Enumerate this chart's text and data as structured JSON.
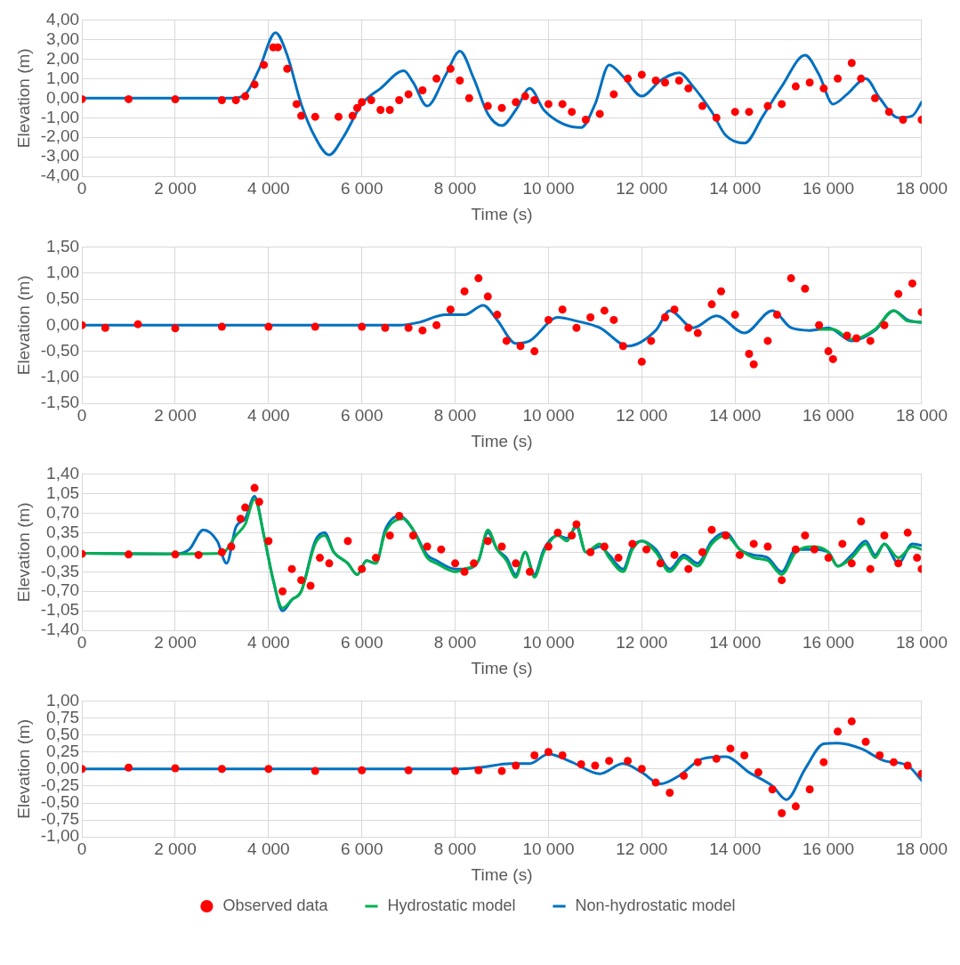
{
  "chart_data": [
    {
      "type": "line",
      "xlabel": "Time (s)",
      "ylabel": "Elevation (m)",
      "grid": true,
      "legend": false,
      "xlim": [
        0,
        18000
      ],
      "xticks": [
        {
          "value": 0,
          "label": "0"
        },
        {
          "value": 2000,
          "label": "2 000"
        },
        {
          "value": 4000,
          "label": "4 000"
        },
        {
          "value": 6000,
          "label": "6 000"
        },
        {
          "value": 8000,
          "label": "8 000"
        },
        {
          "value": 10000,
          "label": "10 000"
        },
        {
          "value": 12000,
          "label": "12 000"
        },
        {
          "value": 14000,
          "label": "14 000"
        },
        {
          "value": 16000,
          "label": "16 000"
        },
        {
          "value": 18000,
          "label": "18 000"
        }
      ],
      "ylim": [
        -4,
        4
      ],
      "yticks": [
        {
          "value": -4,
          "label": "-4,00"
        },
        {
          "value": -3,
          "label": "-3,00"
        },
        {
          "value": -2,
          "label": "-2,00"
        },
        {
          "value": -1,
          "label": "-1,00"
        },
        {
          "value": 0,
          "label": "0,00"
        },
        {
          "value": 1,
          "label": "1,00"
        },
        {
          "value": 2,
          "label": "2,00"
        },
        {
          "value": 3,
          "label": "3,00"
        },
        {
          "value": 4,
          "label": "4,00"
        }
      ],
      "series": [
        {
          "type": "scatter",
          "marker": "circle",
          "color": "#ff0000",
          "x": [
            0,
            1000,
            2000,
            3000,
            3300,
            3500,
            3700,
            3900,
            4100,
            4200,
            4400,
            4600,
            4700,
            5000,
            5500,
            5800,
            5900,
            6000,
            6200,
            6400,
            6600,
            6800,
            7000,
            7300,
            7600,
            7900,
            8100,
            8300,
            8700,
            9000,
            9300,
            9500,
            9700,
            10000,
            10300,
            10500,
            10800,
            11100,
            11400,
            11700,
            12000,
            12300,
            12500,
            12800,
            13000,
            13300,
            13600,
            14000,
            14300,
            14700,
            15000,
            15300,
            15600,
            15900,
            16200,
            16500,
            16700,
            17000,
            17300,
            17600,
            18000
          ],
          "values": [
            -0.05,
            -0.05,
            -0.06,
            -0.1,
            -0.1,
            0.1,
            0.7,
            1.7,
            2.6,
            2.6,
            1.5,
            -0.3,
            -0.9,
            -0.95,
            -0.95,
            -0.9,
            -0.5,
            -0.2,
            -0.1,
            -0.6,
            -0.6,
            -0.1,
            0.2,
            0.4,
            1.0,
            1.5,
            0.9,
            0.0,
            -0.4,
            -0.5,
            -0.2,
            0.1,
            -0.1,
            -0.3,
            -0.3,
            -0.7,
            -1.1,
            -0.8,
            0.2,
            1.0,
            1.2,
            0.9,
            0.8,
            0.9,
            0.5,
            -0.4,
            -1.0,
            -0.7,
            -0.7,
            -0.4,
            -0.3,
            0.6,
            0.8,
            0.5,
            1.0,
            1.8,
            1.0,
            0.0,
            -0.7,
            -1.1,
            -1.1
          ]
        },
        {
          "type": "line",
          "marker": "none",
          "color": "#0070c0",
          "x": [
            0,
            3200,
            3500,
            3800,
            4150,
            4400,
            4700,
            5000,
            5300,
            5600,
            6000,
            6400,
            6900,
            7100,
            7400,
            7800,
            8100,
            8400,
            8700,
            9000,
            9300,
            9600,
            9900,
            10300,
            10700,
            11000,
            11300,
            11600,
            12000,
            12400,
            12800,
            13100,
            13500,
            13800,
            14200,
            14600,
            15000,
            15500,
            15800,
            16100,
            16400,
            16800,
            17100,
            17500,
            17800,
            18000
          ],
          "values": [
            0,
            0,
            0.2,
            1.5,
            3.35,
            2.2,
            -0.3,
            -2.0,
            -2.9,
            -2.0,
            -0.3,
            0.5,
            1.4,
            0.8,
            -0.4,
            1.2,
            2.4,
            1.0,
            -0.8,
            -1.4,
            -0.6,
            0.5,
            -0.6,
            -1.3,
            -1.5,
            -0.3,
            1.7,
            1.1,
            0.1,
            0.9,
            1.3,
            0.6,
            -0.7,
            -1.9,
            -2.3,
            -0.9,
            0.6,
            2.2,
            1.2,
            -0.3,
            0.2,
            1.0,
            0.0,
            -1.0,
            -0.9,
            -0.2
          ]
        }
      ]
    },
    {
      "type": "line",
      "xlabel": "Time (s)",
      "ylabel": "Elevation (m)",
      "grid": true,
      "legend": false,
      "xlim": [
        0,
        18000
      ],
      "xticks": [
        {
          "value": 0,
          "label": "0"
        },
        {
          "value": 2000,
          "label": "2 000"
        },
        {
          "value": 4000,
          "label": "4 000"
        },
        {
          "value": 6000,
          "label": "6 000"
        },
        {
          "value": 8000,
          "label": "8 000"
        },
        {
          "value": 10000,
          "label": "10 000"
        },
        {
          "value": 12000,
          "label": "12 000"
        },
        {
          "value": 14000,
          "label": "14 000"
        },
        {
          "value": 16000,
          "label": "16 000"
        },
        {
          "value": 18000,
          "label": "18 000"
        }
      ],
      "ylim": [
        -1.5,
        1.5
      ],
      "yticks": [
        {
          "value": -1.5,
          "label": "-1,50"
        },
        {
          "value": -1,
          "label": "-1,00"
        },
        {
          "value": -0.5,
          "label": "-0,50"
        },
        {
          "value": 0,
          "label": "0,00"
        },
        {
          "value": 0.5,
          "label": "0,50"
        },
        {
          "value": 1,
          "label": "1,00"
        },
        {
          "value": 1.5,
          "label": "1,50"
        }
      ],
      "series": [
        {
          "type": "scatter",
          "marker": "circle",
          "color": "#ff0000",
          "x": [
            0,
            500,
            1200,
            2000,
            3000,
            4000,
            5000,
            6000,
            6500,
            7000,
            7300,
            7600,
            7900,
            8200,
            8500,
            8700,
            8900,
            9100,
            9400,
            9700,
            10000,
            10300,
            10600,
            10900,
            11200,
            11400,
            11600,
            12000,
            12200,
            12500,
            12700,
            13000,
            13200,
            13500,
            13700,
            14000,
            14300,
            14400,
            14700,
            14900,
            15200,
            15500,
            15800,
            16000,
            16100,
            16400,
            16600,
            16900,
            17200,
            17500,
            17800,
            18000
          ],
          "values": [
            0.0,
            -0.05,
            0.02,
            -0.06,
            -0.03,
            -0.03,
            -0.03,
            -0.03,
            -0.05,
            -0.05,
            -0.1,
            0.0,
            0.3,
            0.65,
            0.9,
            0.55,
            0.2,
            -0.3,
            -0.4,
            -0.5,
            0.1,
            0.3,
            -0.05,
            0.15,
            0.28,
            0.1,
            -0.4,
            -0.7,
            -0.3,
            0.15,
            0.3,
            -0.05,
            -0.15,
            0.4,
            0.65,
            0.2,
            -0.55,
            -0.75,
            -0.3,
            0.2,
            0.9,
            0.7,
            0.0,
            -0.5,
            -0.65,
            -0.2,
            -0.25,
            -0.3,
            0.0,
            0.6,
            0.8,
            0.25
          ]
        },
        {
          "type": "line",
          "marker": "none",
          "color": "#00b050",
          "x": [
            15800,
            16100,
            16500,
            17000,
            17400,
            17700,
            18000
          ],
          "values": [
            -0.08,
            -0.08,
            -0.27,
            -0.08,
            0.28,
            0.08,
            0.06
          ]
        },
        {
          "type": "line",
          "marker": "none",
          "color": "#0070c0",
          "x": [
            0,
            6800,
            7200,
            7800,
            8200,
            8600,
            8900,
            9300,
            9600,
            10200,
            10600,
            11100,
            11700,
            12300,
            12600,
            13100,
            13600,
            14200,
            14800,
            15200,
            15600,
            16000,
            16500,
            17000,
            17400,
            17700,
            18000
          ],
          "values": [
            0,
            0,
            0.05,
            0.2,
            0.2,
            0.38,
            0.1,
            -0.35,
            -0.3,
            0.15,
            0.08,
            -0.05,
            -0.4,
            -0.1,
            0.28,
            -0.05,
            0.18,
            -0.15,
            0.28,
            -0.05,
            -0.1,
            -0.05,
            -0.3,
            -0.1,
            0.28,
            0.1,
            0.05
          ]
        }
      ]
    },
    {
      "type": "line",
      "xlabel": "Time (s)",
      "ylabel": "Elevation (m)",
      "grid": true,
      "legend": false,
      "xlim": [
        0,
        18000
      ],
      "xticks": [
        {
          "value": 0,
          "label": "0"
        },
        {
          "value": 2000,
          "label": "2 000"
        },
        {
          "value": 4000,
          "label": "4 000"
        },
        {
          "value": 6000,
          "label": "6 000"
        },
        {
          "value": 8000,
          "label": "8 000"
        },
        {
          "value": 10000,
          "label": "10 000"
        },
        {
          "value": 12000,
          "label": "12 000"
        },
        {
          "value": 14000,
          "label": "14 000"
        },
        {
          "value": 16000,
          "label": "16 000"
        },
        {
          "value": 18000,
          "label": "18 000"
        }
      ],
      "ylim": [
        -1.4,
        1.4
      ],
      "yticks": [
        {
          "value": -1.4,
          "label": "-1,40"
        },
        {
          "value": -1.05,
          "label": "-1,05"
        },
        {
          "value": -0.7,
          "label": "-0,70"
        },
        {
          "value": -0.35,
          "label": "-0,35"
        },
        {
          "value": 0,
          "label": "0,00"
        },
        {
          "value": 0.35,
          "label": "0,35"
        },
        {
          "value": 0.7,
          "label": "0,70"
        },
        {
          "value": 1.05,
          "label": "1,05"
        },
        {
          "value": 1.4,
          "label": "1,40"
        }
      ],
      "series": [
        {
          "type": "scatter",
          "marker": "circle",
          "color": "#ff0000",
          "x": [
            0,
            1000,
            2000,
            2500,
            3000,
            3200,
            3400,
            3500,
            3700,
            3800,
            4000,
            4300,
            4500,
            4700,
            4900,
            5100,
            5300,
            5700,
            6000,
            6300,
            6600,
            6800,
            7100,
            7400,
            7700,
            8000,
            8200,
            8400,
            8700,
            9000,
            9300,
            9600,
            10000,
            10200,
            10500,
            10600,
            10900,
            11200,
            11500,
            11800,
            12100,
            12400,
            12700,
            13000,
            13300,
            13500,
            13800,
            14100,
            14400,
            14700,
            15000,
            15300,
            15500,
            15700,
            16000,
            16300,
            16500,
            16700,
            16900,
            17200,
            17500,
            17700,
            17900,
            18000
          ],
          "values": [
            -0.03,
            -0.04,
            -0.04,
            -0.05,
            0.0,
            0.1,
            0.6,
            0.8,
            1.15,
            0.9,
            0.2,
            -0.7,
            -0.3,
            -0.5,
            -0.6,
            -0.1,
            -0.2,
            0.2,
            -0.3,
            -0.1,
            0.3,
            0.65,
            0.3,
            0.1,
            0.05,
            -0.2,
            -0.35,
            -0.2,
            0.2,
            0.1,
            -0.2,
            -0.35,
            0.1,
            0.35,
            0.3,
            0.5,
            0.0,
            0.1,
            -0.1,
            0.15,
            0.05,
            -0.2,
            -0.05,
            -0.3,
            0.0,
            0.4,
            0.3,
            -0.05,
            0.15,
            0.1,
            -0.5,
            0.05,
            0.3,
            0.05,
            -0.1,
            0.15,
            -0.2,
            0.55,
            -0.3,
            0.3,
            -0.2,
            0.35,
            -0.1,
            -0.3
          ]
        },
        {
          "type": "line",
          "marker": "none",
          "color": "#00b050",
          "x": [
            0,
            2000,
            3000,
            3300,
            3500,
            3700,
            3900,
            4100,
            4300,
            4500,
            4700,
            5000,
            5200,
            5400,
            5700,
            5900,
            6100,
            6300,
            6500,
            6900,
            7100,
            7400,
            7600,
            8000,
            8200,
            8500,
            8700,
            8900,
            9100,
            9300,
            9500,
            9700,
            9900,
            10200,
            10400,
            10600,
            10800,
            11100,
            11300,
            11600,
            11800,
            12000,
            12300,
            12600,
            12900,
            13200,
            13500,
            13800,
            14100,
            14400,
            14700,
            15000,
            15300,
            15700,
            16000,
            16200,
            16500,
            16800,
            17000,
            17200,
            17500,
            17800,
            18000
          ],
          "values": [
            -0.02,
            -0.03,
            -0.02,
            0.3,
            0.5,
            0.95,
            0.3,
            -0.5,
            -1.0,
            -0.85,
            -0.7,
            0.15,
            0.3,
            0.0,
            -0.2,
            -0.4,
            -0.15,
            -0.2,
            0.35,
            0.6,
            0.4,
            -0.1,
            -0.2,
            -0.35,
            -0.3,
            -0.15,
            0.4,
            0.05,
            -0.15,
            -0.45,
            0.0,
            -0.45,
            0.0,
            0.3,
            0.2,
            0.5,
            0.0,
            0.15,
            -0.1,
            -0.35,
            0.05,
            0.2,
            0.0,
            -0.35,
            -0.1,
            -0.25,
            0.15,
            0.3,
            0.05,
            -0.1,
            -0.15,
            -0.4,
            0.0,
            0.1,
            0.0,
            -0.25,
            -0.1,
            0.15,
            -0.1,
            0.15,
            -0.1,
            0.1,
            0.05
          ]
        },
        {
          "type": "line",
          "marker": "none",
          "color": "#0070c0",
          "x": [
            0,
            2000,
            2300,
            2600,
            2900,
            3100,
            3300,
            3500,
            3700,
            3900,
            4100,
            4300,
            4500,
            4700,
            5000,
            5200,
            5400,
            5700,
            5900,
            6100,
            6300,
            6500,
            6800,
            7100,
            7400,
            7600,
            8000,
            8200,
            8500,
            8700,
            8900,
            9100,
            9300,
            9500,
            9700,
            9900,
            10200,
            10400,
            10600,
            10800,
            11100,
            11300,
            11600,
            11800,
            12000,
            12300,
            12600,
            12900,
            13200,
            13500,
            13800,
            14100,
            14400,
            14700,
            15000,
            15300,
            15700,
            16000,
            16200,
            16500,
            16800,
            17000,
            17200,
            17500,
            17800,
            18000
          ],
          "values": [
            -0.02,
            -0.03,
            0.05,
            0.4,
            0.2,
            -0.2,
            0.45,
            0.6,
            1.0,
            0.3,
            -0.5,
            -1.05,
            -0.85,
            -0.7,
            0.2,
            0.35,
            0.0,
            -0.2,
            -0.4,
            -0.15,
            -0.2,
            0.4,
            0.65,
            0.4,
            -0.05,
            -0.15,
            -0.3,
            -0.3,
            -0.15,
            0.35,
            0.05,
            -0.1,
            -0.4,
            0.0,
            -0.4,
            0.05,
            0.3,
            0.25,
            0.45,
            0.0,
            0.1,
            -0.05,
            -0.3,
            0.1,
            0.2,
            0.05,
            -0.3,
            -0.05,
            -0.2,
            0.2,
            0.35,
            0.05,
            -0.05,
            -0.1,
            -0.35,
            0.05,
            0.05,
            0.0,
            -0.25,
            -0.05,
            0.2,
            -0.05,
            0.15,
            -0.2,
            0.15,
            0.12
          ]
        }
      ]
    },
    {
      "type": "line",
      "xlabel": "Time (s)",
      "ylabel": "Elevation (m)",
      "grid": true,
      "legend": "bottom",
      "xlim": [
        0,
        18000
      ],
      "xticks": [
        {
          "value": 0,
          "label": "0"
        },
        {
          "value": 2000,
          "label": "2 000"
        },
        {
          "value": 4000,
          "label": "4 000"
        },
        {
          "value": 6000,
          "label": "6 000"
        },
        {
          "value": 8000,
          "label": "8 000"
        },
        {
          "value": 10000,
          "label": "10 000"
        },
        {
          "value": 12000,
          "label": "12 000"
        },
        {
          "value": 14000,
          "label": "14 000"
        },
        {
          "value": 16000,
          "label": "16 000"
        },
        {
          "value": 18000,
          "label": "18 000"
        }
      ],
      "ylim": [
        -1,
        1
      ],
      "yticks": [
        {
          "value": -1,
          "label": "-1,00"
        },
        {
          "value": -0.75,
          "label": "-0,75"
        },
        {
          "value": -0.5,
          "label": "-0,50"
        },
        {
          "value": -0.25,
          "label": "-0,25"
        },
        {
          "value": 0,
          "label": "0,00"
        },
        {
          "value": 0.25,
          "label": "0,25"
        },
        {
          "value": 0.5,
          "label": "0,50"
        },
        {
          "value": 0.75,
          "label": "0,75"
        },
        {
          "value": 1,
          "label": "1,00"
        }
      ],
      "series": [
        {
          "name": "Observed data",
          "type": "scatter",
          "marker": "circle",
          "color": "#ff0000",
          "x": [
            0,
            1000,
            2000,
            3000,
            4000,
            5000,
            6000,
            7000,
            8000,
            8500,
            9000,
            9300,
            9700,
            10000,
            10300,
            10700,
            11000,
            11300,
            11700,
            12000,
            12300,
            12600,
            12900,
            13200,
            13600,
            13900,
            14200,
            14500,
            14800,
            15000,
            15300,
            15600,
            15900,
            16200,
            16500,
            16800,
            17100,
            17400,
            17700,
            18000
          ],
          "values": [
            0.0,
            0.02,
            0.01,
            0.0,
            0.0,
            -0.03,
            -0.02,
            -0.02,
            -0.03,
            -0.02,
            -0.03,
            0.05,
            0.2,
            0.25,
            0.2,
            0.07,
            0.05,
            0.12,
            0.12,
            0.0,
            -0.2,
            -0.35,
            -0.1,
            0.1,
            0.15,
            0.3,
            0.2,
            -0.05,
            -0.3,
            -0.65,
            -0.55,
            -0.3,
            0.1,
            0.55,
            0.7,
            0.4,
            0.2,
            0.1,
            0.05,
            -0.07
          ]
        },
        {
          "name": "Hydrostatic model",
          "type": "line",
          "marker": "none",
          "color": "#00b050"
        },
        {
          "name": "Non-hydrostatic model",
          "type": "line",
          "marker": "none",
          "color": "#0070c0",
          "x": [
            0,
            8000,
            8500,
            9200,
            9600,
            10000,
            10500,
            11100,
            11600,
            12000,
            12400,
            12800,
            13300,
            13800,
            14300,
            14800,
            15100,
            15500,
            15900,
            16200,
            16700,
            17200,
            17700,
            18000
          ],
          "values": [
            0,
            0,
            0.02,
            0.08,
            0.08,
            0.22,
            0.1,
            -0.07,
            0.08,
            -0.05,
            -0.22,
            -0.1,
            0.15,
            0.18,
            -0.05,
            -0.25,
            -0.45,
            0.0,
            0.37,
            0.38,
            0.3,
            0.12,
            0.05,
            -0.17
          ]
        }
      ]
    }
  ]
}
